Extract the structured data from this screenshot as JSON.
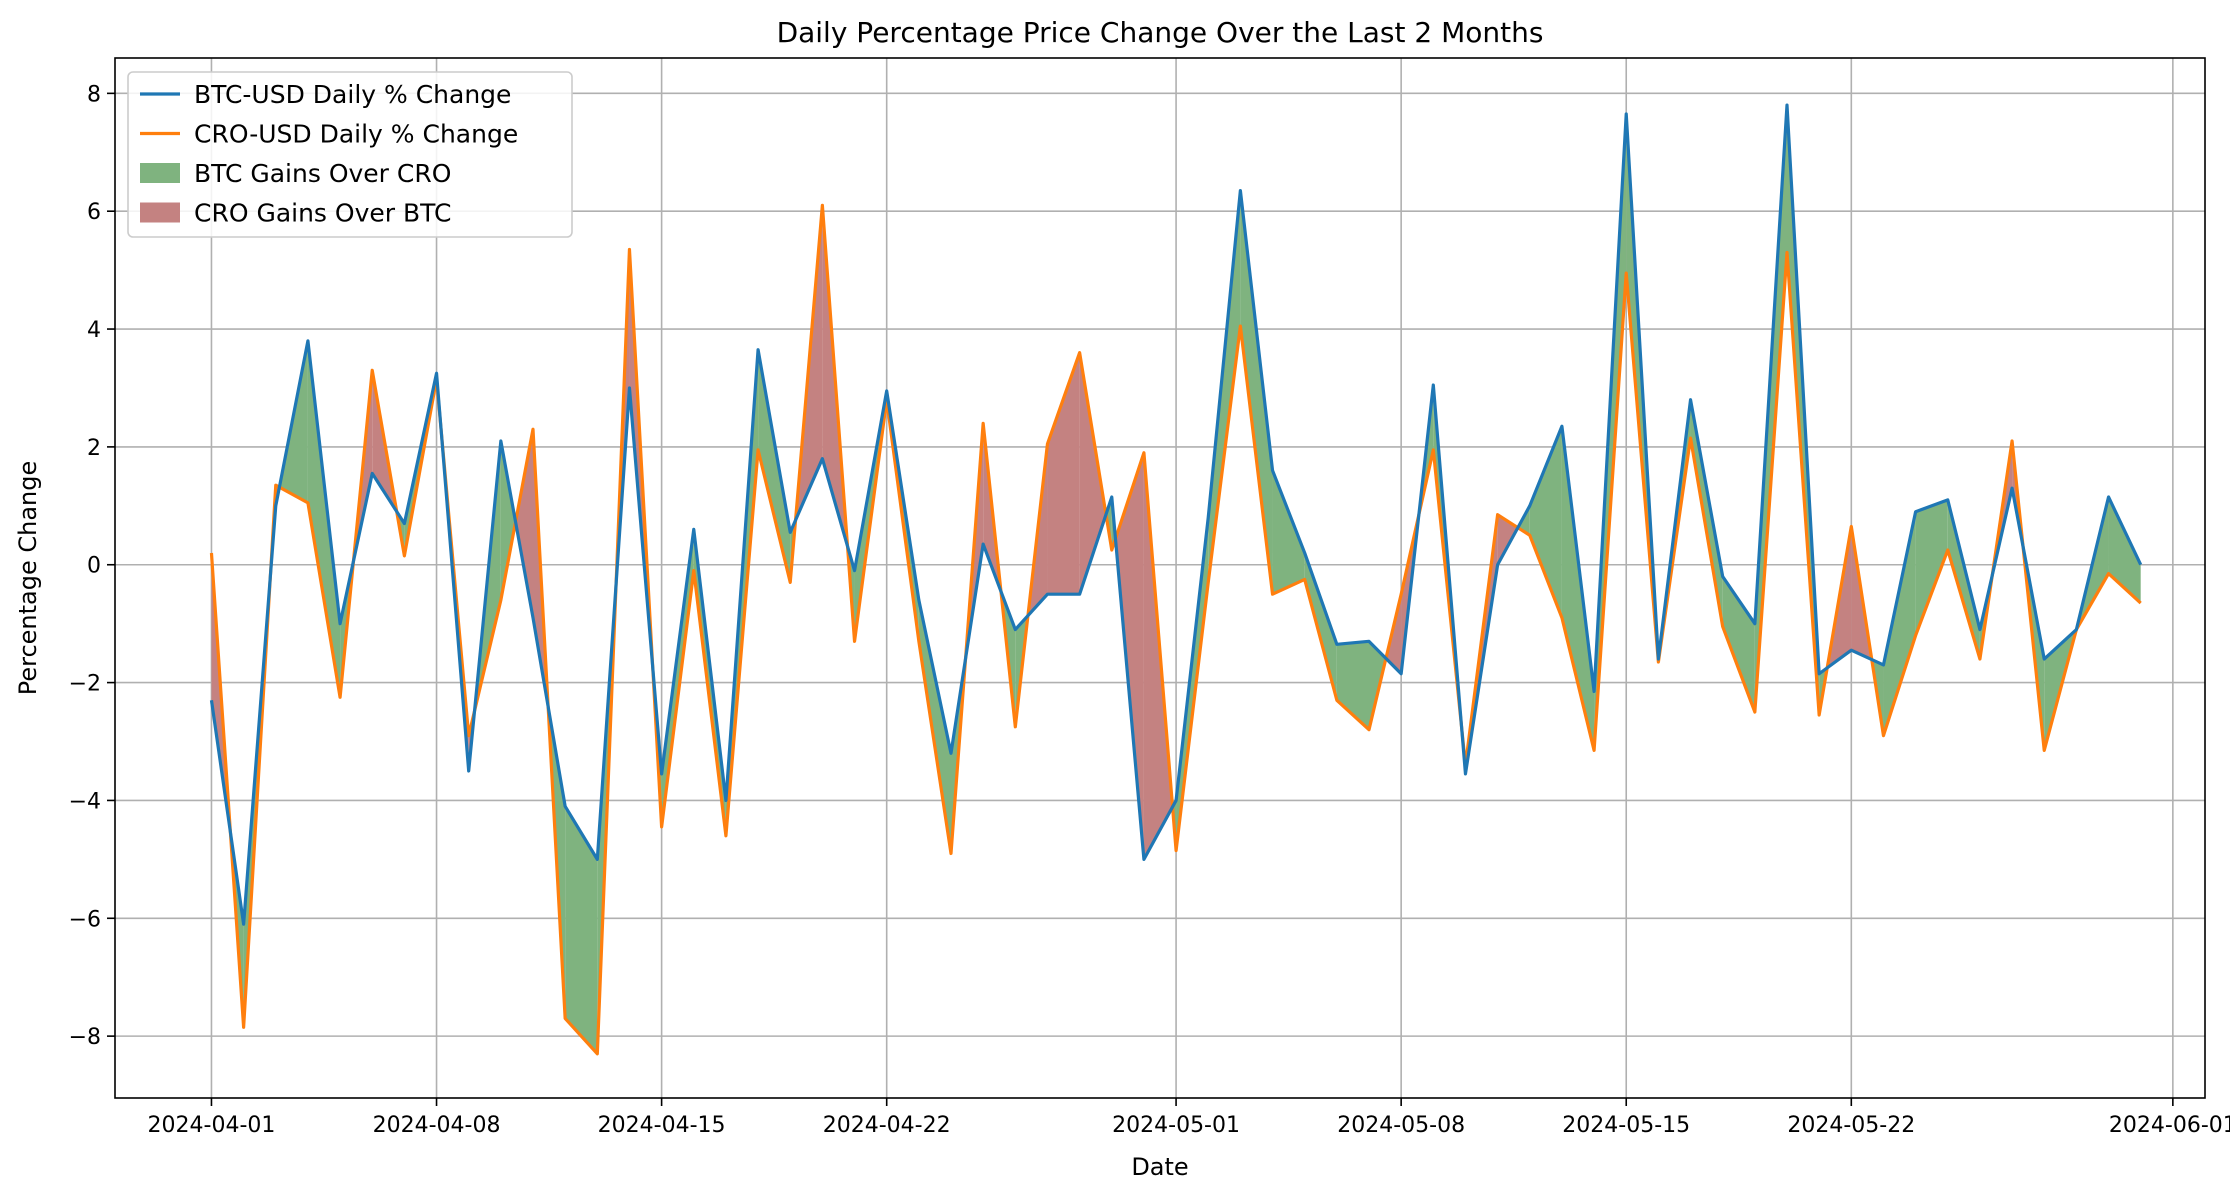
{
  "chart_data": {
    "type": "line",
    "title": "Daily Percentage Price Change Over the Last 2 Months",
    "xlabel": "Date",
    "ylabel": "Percentage Change",
    "x_start": "2024-04-01",
    "x": [
      "2024-04-01",
      "2024-04-02",
      "2024-04-03",
      "2024-04-04",
      "2024-04-05",
      "2024-04-06",
      "2024-04-07",
      "2024-04-08",
      "2024-04-09",
      "2024-04-10",
      "2024-04-11",
      "2024-04-12",
      "2024-04-13",
      "2024-04-14",
      "2024-04-15",
      "2024-04-16",
      "2024-04-17",
      "2024-04-18",
      "2024-04-19",
      "2024-04-20",
      "2024-04-21",
      "2024-04-22",
      "2024-04-23",
      "2024-04-24",
      "2024-04-25",
      "2024-04-26",
      "2024-04-27",
      "2024-04-28",
      "2024-04-29",
      "2024-04-30",
      "2024-05-01",
      "2024-05-02",
      "2024-05-03",
      "2024-05-04",
      "2024-05-05",
      "2024-05-06",
      "2024-05-07",
      "2024-05-08",
      "2024-05-09",
      "2024-05-10",
      "2024-05-11",
      "2024-05-12",
      "2024-05-13",
      "2024-05-14",
      "2024-05-15",
      "2024-05-16",
      "2024-05-17",
      "2024-05-18",
      "2024-05-19",
      "2024-05-20",
      "2024-05-21",
      "2024-05-22",
      "2024-05-23",
      "2024-05-24",
      "2024-05-25",
      "2024-05-26",
      "2024-05-27",
      "2024-05-28",
      "2024-05-29",
      "2024-05-30",
      "2024-05-31"
    ],
    "xlim": [
      "2024-03-29",
      "2024-06-02"
    ],
    "ylim": [
      -9.05,
      8.6
    ],
    "x_ticks": [
      "2024-04-01",
      "2024-04-08",
      "2024-04-15",
      "2024-04-22",
      "2024-05-01",
      "2024-05-08",
      "2024-05-15",
      "2024-05-22",
      "2024-06-01"
    ],
    "y_ticks": [
      {
        "value": -8,
        "label": "−8"
      },
      {
        "value": -6,
        "label": "−6"
      },
      {
        "value": -4,
        "label": "−4"
      },
      {
        "value": -2,
        "label": "−2"
      },
      {
        "value": 0,
        "label": "0"
      },
      {
        "value": 2,
        "label": "2"
      },
      {
        "value": 4,
        "label": "4"
      },
      {
        "value": 6,
        "label": "6"
      },
      {
        "value": 8,
        "label": "8"
      }
    ],
    "grid": true,
    "legend_position": "top-left",
    "series": [
      {
        "name": "BTC-USD Daily % Change",
        "color": "#1f77b4",
        "values": [
          -2.3,
          -6.1,
          1.0,
          3.8,
          -1.0,
          1.55,
          0.7,
          3.25,
          -3.5,
          2.1,
          -0.9,
          -4.1,
          -5.0,
          3.0,
          -3.55,
          0.6,
          -4.0,
          3.65,
          0.55,
          1.8,
          -0.1,
          2.95,
          -0.6,
          -3.2,
          0.35,
          -1.1,
          -0.5,
          -0.5,
          1.15,
          -5.0,
          -4.0,
          0.8,
          6.35,
          1.6,
          0.2,
          -1.35,
          -1.3,
          -1.85,
          3.05,
          -3.55,
          0.0,
          1.0,
          2.35,
          -2.15,
          7.65,
          -1.6,
          2.8,
          -0.2,
          -1.0,
          7.8,
          -1.85,
          -1.45,
          -1.7,
          0.9,
          1.1,
          -1.1,
          1.3,
          -1.6,
          -1.1,
          1.15,
          0.0
        ]
      },
      {
        "name": "CRO-USD Daily % Change",
        "color": "#ff7f0e",
        "values": [
          0.2,
          -7.85,
          1.35,
          1.05,
          -2.25,
          3.3,
          0.15,
          3.15,
          -2.9,
          -0.6,
          2.3,
          -7.7,
          -8.3,
          5.35,
          -4.45,
          -0.1,
          -4.6,
          1.95,
          -0.3,
          6.1,
          -1.3,
          2.8,
          -1.3,
          -4.9,
          2.4,
          -2.75,
          2.05,
          3.6,
          0.25,
          1.9,
          -4.85,
          -0.3,
          4.05,
          -0.5,
          -0.25,
          -2.3,
          -2.8,
          -0.5,
          1.95,
          -3.4,
          0.85,
          0.5,
          -0.9,
          -3.15,
          4.95,
          -1.65,
          2.15,
          -1.05,
          -2.5,
          5.3,
          -2.55,
          0.65,
          -2.9,
          -1.2,
          0.25,
          -1.6,
          2.1,
          -3.15,
          -1.1,
          -0.15,
          -0.65
        ]
      }
    ],
    "fills": [
      {
        "name": "BTC Gains Over CRO",
        "color": "#7fb37f",
        "condition": "btc_above"
      },
      {
        "name": "CRO Gains Over BTC",
        "color": "#c48281",
        "condition": "cro_above"
      }
    ]
  }
}
